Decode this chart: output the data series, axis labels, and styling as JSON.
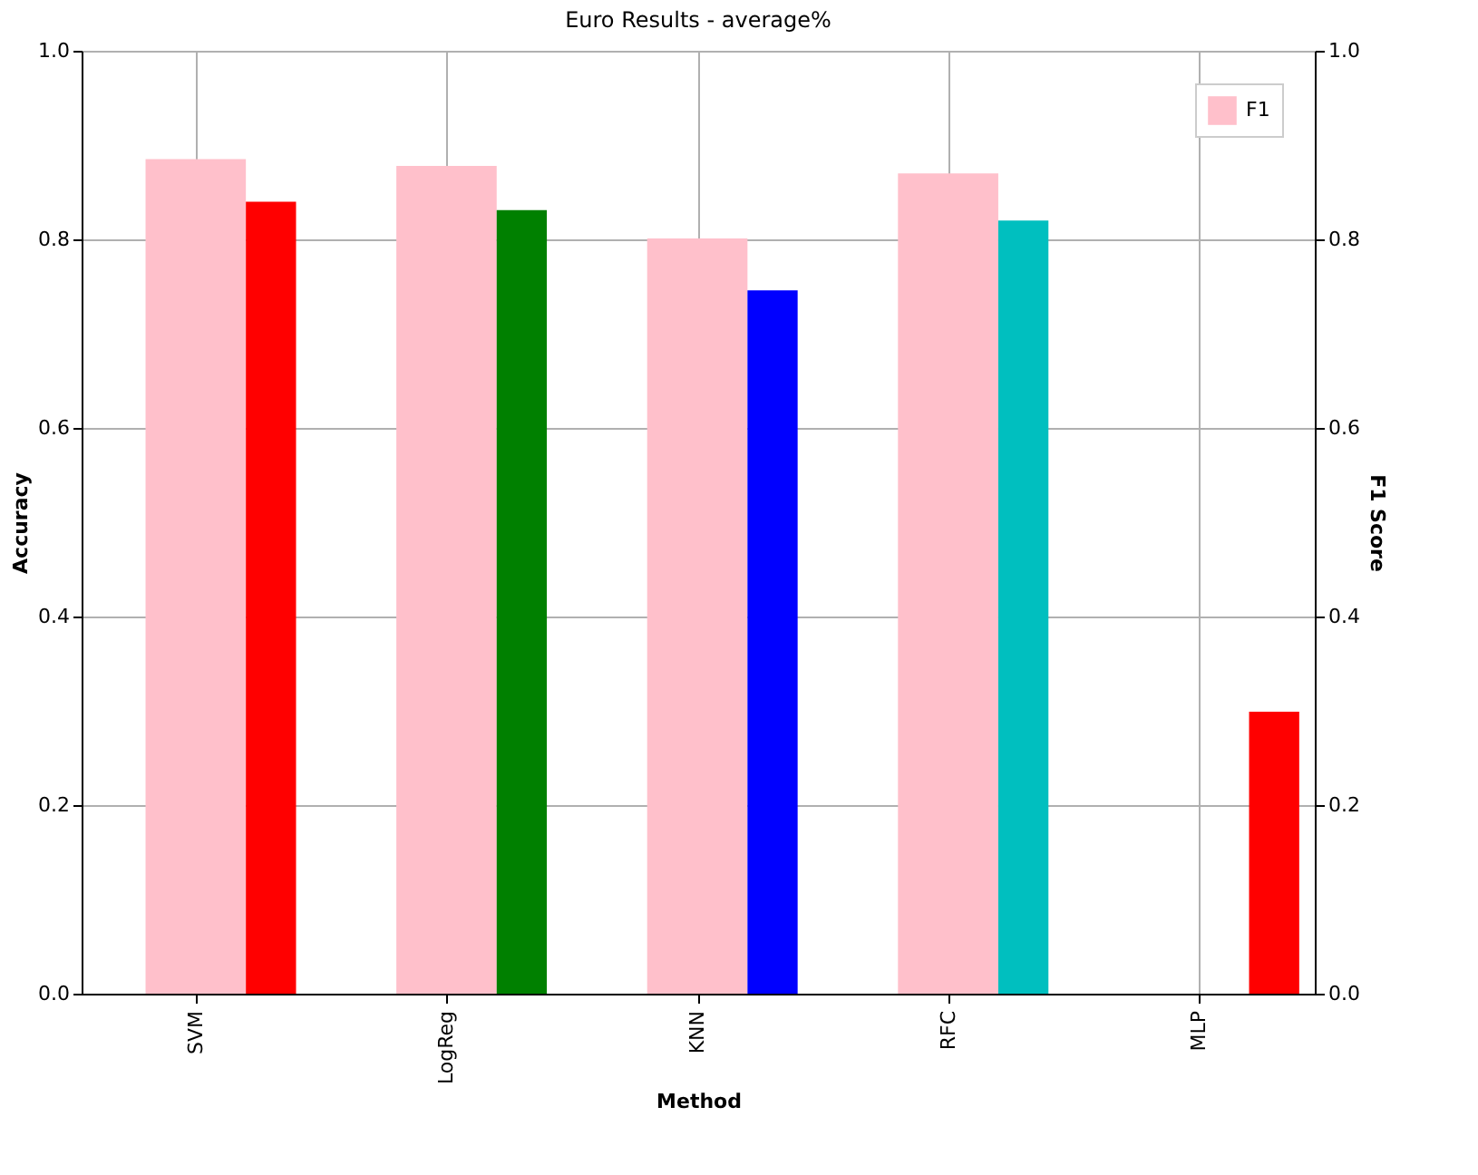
{
  "chart_data": {
    "type": "bar",
    "title": "Euro Results - average%",
    "xlabel": "Method",
    "ylabel": "Accuracy",
    "y2label": "F1 Score",
    "categories": [
      "SVM",
      "LogReg",
      "KNN",
      "RFC",
      "MLP"
    ],
    "series": [
      {
        "name": "F1",
        "color": "#ffc0cb",
        "axis": "y2",
        "values": [
          0.885,
          0.878,
          0.801,
          0.87,
          null
        ]
      },
      {
        "colors": [
          "#ff0000",
          "#008000",
          "#0000ff",
          "#00bfbf",
          "#ff0000"
        ],
        "values": [
          0.84,
          0.831,
          0.746,
          0.82,
          0.299
        ]
      }
    ],
    "ylim": [
      0,
      1
    ],
    "y2lim": [
      0,
      1
    ],
    "yticks": [
      {
        "value": 0,
        "label": "0.0"
      },
      {
        "value": 0.2,
        "label": "0.2"
      },
      {
        "value": 0.4,
        "label": "0.4"
      },
      {
        "value": 0.6,
        "label": "0.6"
      },
      {
        "value": 0.8,
        "label": "0.8"
      },
      {
        "value": 1,
        "label": "1.0"
      }
    ],
    "y2ticks": [
      {
        "value": 0,
        "label": "0.0"
      },
      {
        "value": 0.2,
        "label": "0.2"
      },
      {
        "value": 0.4,
        "label": "0.4"
      },
      {
        "value": 0.6,
        "label": "0.6"
      },
      {
        "value": 0.8,
        "label": "0.8"
      },
      {
        "value": 1,
        "label": "1.0"
      }
    ],
    "grid": true,
    "legend": "top right"
  }
}
